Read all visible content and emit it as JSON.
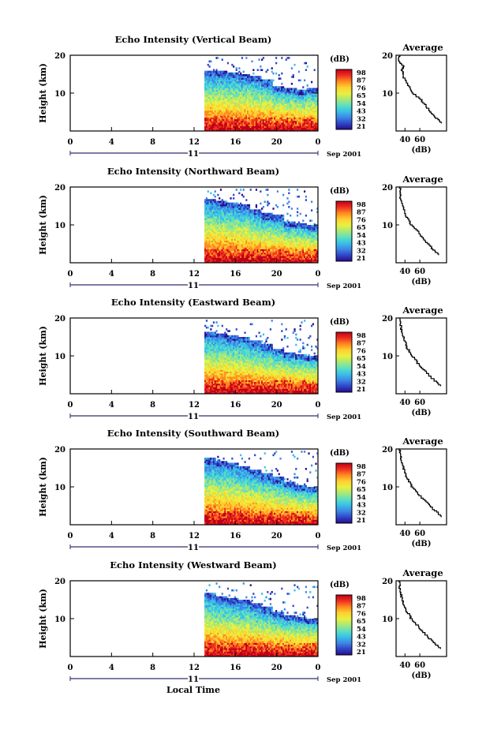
{
  "chart_data": [
    {
      "type": "heatmap",
      "title": "Echo Intensity (Vertical Beam)",
      "ylabel": "Height (km)",
      "colorbar_label": "(dB)",
      "colorbar_ticks": [
        "98",
        "87",
        "76",
        "65",
        "54",
        "43",
        "32",
        "21"
      ],
      "profile_title": "Average",
      "profile_xlabel": "(dB)",
      "profile_xticks": [
        "40",
        "60"
      ],
      "echo_top_km": [
        16,
        16,
        15.5,
        15,
        14.5,
        13.5,
        12,
        11.5,
        11,
        11.5
      ],
      "profile": [
        [
          90,
          2
        ],
        [
          78,
          4
        ],
        [
          70,
          6
        ],
        [
          62,
          8
        ],
        [
          50,
          10
        ],
        [
          44,
          12
        ],
        [
          38,
          14
        ],
        [
          36,
          16
        ],
        [
          38,
          17
        ],
        [
          32,
          18
        ],
        [
          33,
          20
        ]
      ]
    },
    {
      "type": "heatmap",
      "title": "Echo Intensity (Northward Beam)",
      "ylabel": "Height (km)",
      "colorbar_label": "(dB)",
      "colorbar_ticks": [
        "98",
        "87",
        "76",
        "65",
        "54",
        "43",
        "32",
        "21"
      ],
      "profile_title": "Average",
      "profile_xlabel": "(dB)",
      "profile_xticks": [
        "40",
        "60"
      ],
      "echo_top_km": [
        17,
        16.5,
        16,
        15.5,
        14,
        13,
        12.5,
        11,
        10.5,
        10
      ],
      "profile": [
        [
          85,
          2
        ],
        [
          75,
          4
        ],
        [
          66,
          6
        ],
        [
          58,
          8
        ],
        [
          48,
          10
        ],
        [
          42,
          12
        ],
        [
          38,
          14
        ],
        [
          35,
          16
        ],
        [
          33,
          18
        ],
        [
          34,
          20
        ]
      ]
    },
    {
      "type": "heatmap",
      "title": "Echo Intensity (Eastward Beam)",
      "ylabel": "Height (km)",
      "colorbar_label": "(dB)",
      "colorbar_ticks": [
        "98",
        "87",
        "76",
        "65",
        "54",
        "43",
        "32",
        "21"
      ],
      "profile_title": "Average",
      "profile_xlabel": "(dB)",
      "profile_xticks": [
        "40",
        "60"
      ],
      "echo_top_km": [
        16.5,
        16,
        15.5,
        15,
        14,
        13,
        12,
        11,
        10.5,
        10
      ],
      "profile": [
        [
          88,
          2
        ],
        [
          76,
          4
        ],
        [
          66,
          6
        ],
        [
          57,
          8
        ],
        [
          49,
          10
        ],
        [
          43,
          12
        ],
        [
          39,
          14
        ],
        [
          36,
          16
        ],
        [
          34,
          18
        ],
        [
          33,
          20
        ]
      ]
    },
    {
      "type": "heatmap",
      "title": "Echo Intensity (Southward Beam)",
      "ylabel": "Height (km)",
      "colorbar_label": "(dB)",
      "colorbar_ticks": [
        "98",
        "87",
        "76",
        "65",
        "54",
        "43",
        "32",
        "21"
      ],
      "profile_title": "Average",
      "profile_xlabel": "(dB)",
      "profile_xticks": [
        "40",
        "60"
      ],
      "echo_top_km": [
        17.5,
        17,
        16.5,
        15.5,
        14.5,
        13.5,
        12.5,
        11.5,
        10.5,
        10
      ],
      "profile": [
        [
          90,
          2
        ],
        [
          78,
          4
        ],
        [
          68,
          6
        ],
        [
          58,
          8
        ],
        [
          49,
          10
        ],
        [
          43,
          12
        ],
        [
          39,
          14
        ],
        [
          36,
          16
        ],
        [
          34,
          18
        ],
        [
          33,
          20
        ]
      ]
    },
    {
      "type": "heatmap",
      "title": "Echo Intensity (Westward Beam)",
      "ylabel": "Height (km)",
      "colorbar_label": "(dB)",
      "colorbar_ticks": [
        "98",
        "87",
        "76",
        "65",
        "54",
        "43",
        "32",
        "21"
      ],
      "profile_title": "Average",
      "profile_xlabel": "(dB)",
      "profile_xticks": [
        "40",
        "60"
      ],
      "echo_top_km": [
        17,
        16,
        15.5,
        15,
        14,
        13,
        12,
        11,
        10.5,
        10
      ],
      "profile": [
        [
          88,
          2
        ],
        [
          76,
          4
        ],
        [
          66,
          6
        ],
        [
          57,
          8
        ],
        [
          48,
          10
        ],
        [
          42,
          12
        ],
        [
          38,
          14
        ],
        [
          35,
          16
        ],
        [
          33,
          18
        ],
        [
          32,
          20
        ]
      ]
    }
  ],
  "shared": {
    "y_range_km": [
      0,
      20
    ],
    "y_ticks": [
      "20",
      "10"
    ],
    "x_range_hours": [
      0,
      24
    ],
    "x_ticks": [
      "0",
      "4",
      "8",
      "12",
      "16",
      "20",
      "0"
    ],
    "data_start_hour": 13,
    "day_label": "11",
    "month_year": "Sep 2001",
    "bottom_xlabel": "Local Time"
  },
  "colors": {
    "colormap": [
      "#2a0a8c",
      "#2e47c8",
      "#3f86e6",
      "#38c0e8",
      "#5ee0c0",
      "#a8e878",
      "#e8f040",
      "#ffd030",
      "#ff8a20",
      "#f03020",
      "#c00018"
    ],
    "line": "#000000",
    "background": "#ffffff"
  }
}
